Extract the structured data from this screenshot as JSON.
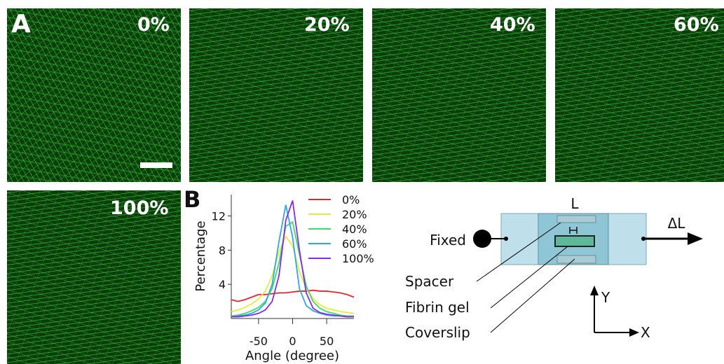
{
  "panel_a": {
    "label": "A",
    "images": [
      {
        "label": "0%"
      },
      {
        "label": "20%"
      },
      {
        "label": "40%"
      },
      {
        "label": "60%"
      },
      {
        "label": "100%"
      }
    ]
  },
  "chart_data": {
    "type": "line",
    "panel_label": "B",
    "x_label": "Angle (degree)",
    "y_label": "Percentage",
    "x": [
      -90,
      -80,
      -70,
      -60,
      -50,
      -40,
      -30,
      -20,
      -10,
      0,
      10,
      20,
      30,
      40,
      50,
      60,
      70,
      80,
      90
    ],
    "series": [
      {
        "name": "0%",
        "color": "#e8262a",
        "values": [
          2.2,
          2.0,
          2.2,
          2.5,
          2.8,
          2.8,
          2.9,
          3.0,
          3.0,
          3.1,
          3.2,
          3.2,
          3.3,
          3.2,
          3.2,
          3.1,
          3.0,
          2.8,
          2.5
        ]
      },
      {
        "name": "20%",
        "color": "#e4ee3a",
        "values": [
          0.8,
          1.0,
          1.3,
          1.7,
          2.3,
          3.2,
          5.0,
          7.8,
          9.6,
          8.5,
          5.5,
          3.5,
          2.3,
          1.6,
          1.2,
          1.0,
          0.8,
          0.7,
          0.6
        ]
      },
      {
        "name": "40%",
        "color": "#3ddc6a",
        "values": [
          0.3,
          0.4,
          0.6,
          0.9,
          1.3,
          2.0,
          3.5,
          6.5,
          10.8,
          11.3,
          7.5,
          3.8,
          2.0,
          1.2,
          0.8,
          0.6,
          0.4,
          0.3,
          0.3
        ]
      },
      {
        "name": "60%",
        "color": "#2aa8e8",
        "values": [
          0.2,
          0.3,
          0.4,
          0.6,
          1.0,
          1.8,
          4.0,
          9.0,
          13.3,
          9.5,
          3.5,
          1.5,
          0.9,
          0.6,
          0.4,
          0.3,
          0.3,
          0.2,
          0.2
        ]
      },
      {
        "name": "100%",
        "color": "#8a2be2",
        "values": [
          0.2,
          0.2,
          0.3,
          0.4,
          0.6,
          1.0,
          2.0,
          5.0,
          11.5,
          13.8,
          8.0,
          3.0,
          1.2,
          0.7,
          0.5,
          0.4,
          0.3,
          0.2,
          0.2
        ]
      }
    ],
    "xlim": [
      -90,
      90
    ],
    "ylim": [
      0,
      14.5
    ],
    "xticks": [
      -50,
      0,
      50
    ],
    "yticks": [
      4,
      8,
      12
    ]
  },
  "diagram": {
    "fixed": "Fixed",
    "length": "L",
    "delta_length": "ΔL",
    "spacer": "Spacer",
    "fibrin_gel": "Fibrin gel",
    "coverslip": "Coverslip",
    "y_axis": "Y",
    "x_axis": "X"
  }
}
